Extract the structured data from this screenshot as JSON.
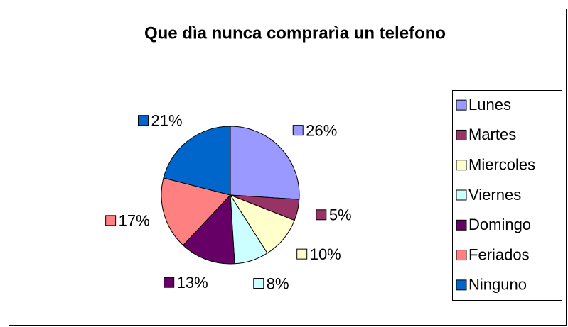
{
  "chart_data": {
    "type": "pie",
    "title": "Que dìa nunca comprarìa un telefono",
    "categories": [
      "Lunes",
      "Martes",
      "Miercoles",
      "Viernes",
      "Domingo",
      "Feriados",
      "Ninguno"
    ],
    "values": [
      26,
      5,
      10,
      8,
      13,
      17,
      21
    ],
    "value_labels": [
      "26%",
      "5%",
      "10%",
      "8%",
      "13%",
      "17%",
      "21%"
    ],
    "colors": [
      "#9999ff",
      "#993366",
      "#ffffcc",
      "#ccffff",
      "#660066",
      "#ff8080",
      "#0066cc"
    ],
    "legend": "right"
  }
}
